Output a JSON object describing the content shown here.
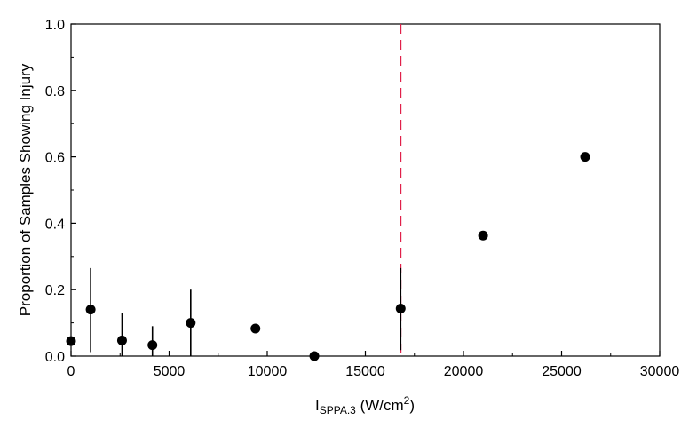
{
  "chart_data": {
    "type": "scatter",
    "title": "",
    "xlabel": "I",
    "xlabel_subscript": "SPPA.3",
    "xlabel_unit_prefix": " (W/cm",
    "xlabel_unit_superscript": "2",
    "xlabel_unit_suffix": ")",
    "ylabel": "Proportion of Samples Showing Injury",
    "xlim": [
      0,
      30000
    ],
    "ylim": [
      0.0,
      1.0
    ],
    "xticks": [
      "0",
      "5000",
      "10000",
      "15000",
      "20000",
      "25000",
      "30000"
    ],
    "yticks": [
      "0.0",
      "0.2",
      "0.4",
      "0.6",
      "0.8",
      "1.0"
    ],
    "grid": false,
    "series": [
      {
        "points": [
          {
            "x": 0,
            "y": 0.045
          },
          {
            "x": 1000,
            "y": 0.14,
            "err_low": 0.012,
            "err_high": 0.265
          },
          {
            "x": 2600,
            "y": 0.047,
            "err_low": 0.0,
            "err_high": 0.13
          },
          {
            "x": 4150,
            "y": 0.033,
            "err_low": 0.0,
            "err_high": 0.09
          },
          {
            "x": 6100,
            "y": 0.1,
            "err_low": 0.0,
            "err_high": 0.2
          },
          {
            "x": 9400,
            "y": 0.083
          },
          {
            "x": 12400,
            "y": 0.0
          },
          {
            "x": 16800,
            "y": 0.143,
            "err_low": 0.018,
            "err_high": 0.265
          },
          {
            "x": 21000,
            "y": 0.363
          },
          {
            "x": 26200,
            "y": 0.6
          }
        ],
        "color": "#000000"
      }
    ],
    "reference_line": {
      "orientation": "vertical",
      "x": 16800,
      "style": "dashed",
      "color": "#e0204a"
    }
  }
}
